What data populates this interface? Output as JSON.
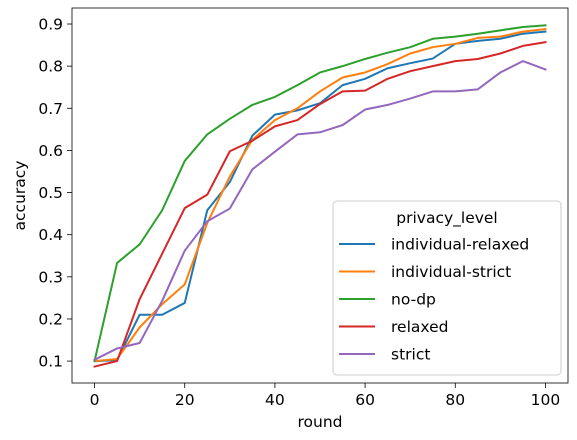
{
  "chart_data": {
    "type": "line",
    "title": "",
    "xlabel": "round",
    "ylabel": "accuracy",
    "xlim": [
      -5,
      105
    ],
    "ylim": [
      0.048,
      0.938
    ],
    "xticks": [
      0,
      20,
      40,
      60,
      80,
      100
    ],
    "yticks": [
      0.1,
      0.2,
      0.3,
      0.4,
      0.5,
      0.6,
      0.7,
      0.8,
      0.9
    ],
    "grid": false,
    "legend": {
      "title": "privacy_level",
      "placement": "lower-right"
    },
    "x": [
      0,
      5,
      10,
      15,
      20,
      25,
      30,
      35,
      40,
      45,
      50,
      55,
      60,
      65,
      70,
      75,
      80,
      85,
      90,
      95,
      100
    ],
    "series": [
      {
        "name": "individual-relaxed",
        "color": "#1f77b4",
        "values": [
          0.1,
          0.102,
          0.21,
          0.21,
          0.238,
          0.458,
          0.525,
          0.635,
          0.685,
          0.695,
          0.712,
          0.755,
          0.77,
          0.795,
          0.807,
          0.818,
          0.853,
          0.86,
          0.865,
          0.877,
          0.882
        ]
      },
      {
        "name": "individual-strict",
        "color": "#ff7f0e",
        "values": [
          0.1,
          0.105,
          0.18,
          0.235,
          0.282,
          0.428,
          0.538,
          0.625,
          0.672,
          0.7,
          0.74,
          0.773,
          0.785,
          0.805,
          0.83,
          0.845,
          0.853,
          0.867,
          0.87,
          0.882,
          0.888
        ]
      },
      {
        "name": "no-dp",
        "color": "#2ca02c",
        "values": [
          0.1,
          0.333,
          0.377,
          0.458,
          0.575,
          0.638,
          0.675,
          0.708,
          0.727,
          0.755,
          0.785,
          0.8,
          0.817,
          0.832,
          0.845,
          0.865,
          0.87,
          0.877,
          0.885,
          0.893,
          0.897
        ]
      },
      {
        "name": "relaxed",
        "color": "#d62728",
        "values": [
          0.087,
          0.1,
          0.247,
          0.355,
          0.463,
          0.495,
          0.598,
          0.623,
          0.657,
          0.672,
          0.71,
          0.74,
          0.742,
          0.77,
          0.788,
          0.8,
          0.812,
          0.817,
          0.83,
          0.848,
          0.857
        ]
      },
      {
        "name": "strict",
        "color": "#9467bd",
        "values": [
          0.103,
          0.13,
          0.143,
          0.243,
          0.362,
          0.432,
          0.462,
          0.555,
          0.597,
          0.638,
          0.643,
          0.66,
          0.697,
          0.708,
          0.723,
          0.74,
          0.74,
          0.745,
          0.785,
          0.812,
          0.792
        ]
      }
    ]
  }
}
